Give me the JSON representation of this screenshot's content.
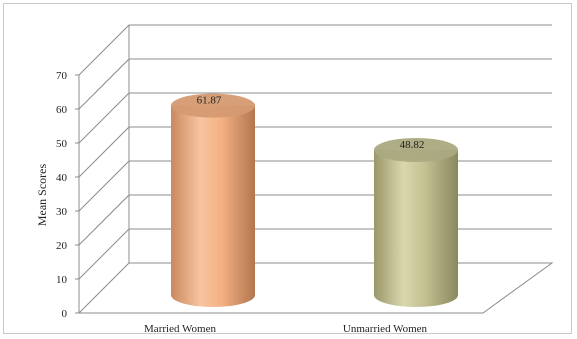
{
  "chart_data": {
    "type": "bar",
    "style": "3d-cylinder",
    "categories": [
      "Married Women",
      "Unmarried Women"
    ],
    "values": [
      61.87,
      48.82
    ],
    "value_labels": [
      "61.87",
      "48.82"
    ],
    "colors": [
      "#f4b183",
      "#c4c293"
    ],
    "title": "",
    "xlabel": "",
    "ylabel": "Mean Scores",
    "ylim": [
      0,
      70
    ],
    "yticks": [
      0,
      10,
      20,
      30,
      40,
      50,
      60,
      70
    ],
    "grid": true,
    "legend": "none"
  }
}
